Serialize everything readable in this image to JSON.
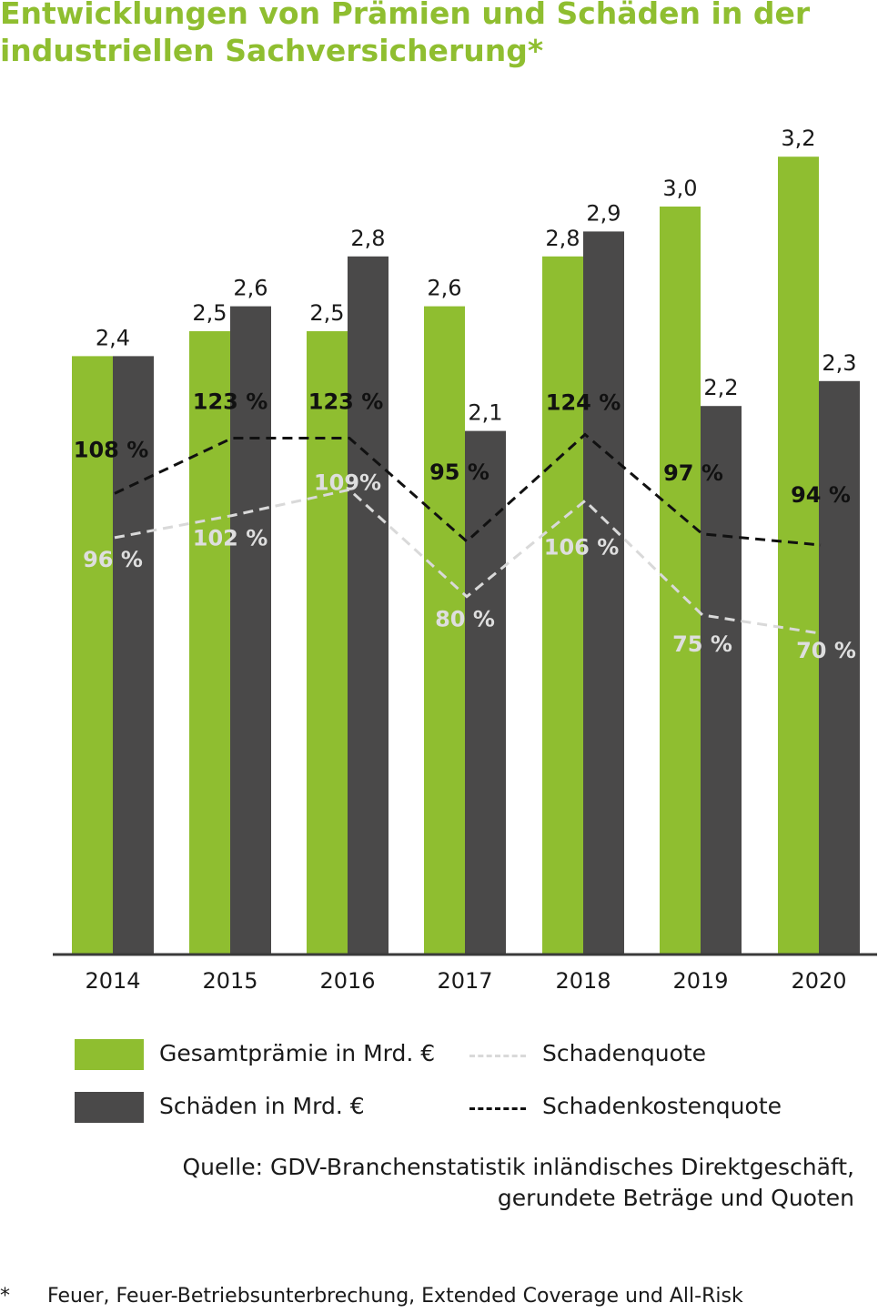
{
  "title_line1": "Entwicklungen von Prämien und Schäden in der",
  "title_line2": "industriellen Sachversicherung*",
  "colors": {
    "title": "#8fbe30",
    "premium_bar": "#8fbe30",
    "claims_bar": "#4a4949",
    "schadenquote_line": "#d9d9d9",
    "schadenkostenquote_line": "#111111"
  },
  "chart_data": {
    "type": "bar",
    "categories": [
      "2014",
      "2015",
      "2016",
      "2017",
      "2018",
      "2019",
      "2020"
    ],
    "ylim": [
      0,
      3.2
    ],
    "series": [
      {
        "name": "Gesamtprämie in Mrd. €",
        "values": [
          2.4,
          2.5,
          2.5,
          2.6,
          2.8,
          3.0,
          3.2
        ],
        "labels": [
          "2,4",
          "2,5",
          "2,5",
          "2,6",
          "2,8",
          "3,0",
          "3,2"
        ]
      },
      {
        "name": "Schäden in Mrd. €",
        "values": [
          2.4,
          2.6,
          2.8,
          2.1,
          2.9,
          2.2,
          2.3
        ],
        "labels": [
          "",
          "2,6",
          "2,8",
          "2,1",
          "2,9",
          "2,2",
          "2,3"
        ]
      }
    ],
    "lines": [
      {
        "name": "Schadenquote",
        "type": "line",
        "values": [
          96,
          102,
          109,
          80,
          106,
          75,
          70
        ],
        "labels": [
          "96 %",
          "102 %",
          "109%",
          "80 %",
          "106 %",
          "75 %",
          "70 %"
        ]
      },
      {
        "name": "Schadenkostenquote",
        "type": "line",
        "values": [
          108,
          123,
          123,
          95,
          124,
          97,
          94
        ],
        "labels": [
          "108 %",
          "123 %",
          "123 %",
          "95 %",
          "124 %",
          "97 %",
          "94 %"
        ]
      }
    ],
    "legend": [
      {
        "label": "Gesamtprämie in Mrd. €",
        "kind": "bar"
      },
      {
        "label": "Schäden in Mrd. €",
        "kind": "bar"
      },
      {
        "label": "Schadenquote",
        "kind": "dashed-line"
      },
      {
        "label": "Schadenkostenquote",
        "kind": "dashed-line"
      }
    ],
    "legend_position": "bottom"
  },
  "source_line1": "Quelle: GDV-Branchenstatistik inländisches Direktgeschäft,",
  "source_line2": "gerundete Beträge und Quoten",
  "footnote_mark": "*",
  "footnote_text": "Feuer, Feuer-Betriebsunterbrechung, Extended Coverage und All-Risk"
}
